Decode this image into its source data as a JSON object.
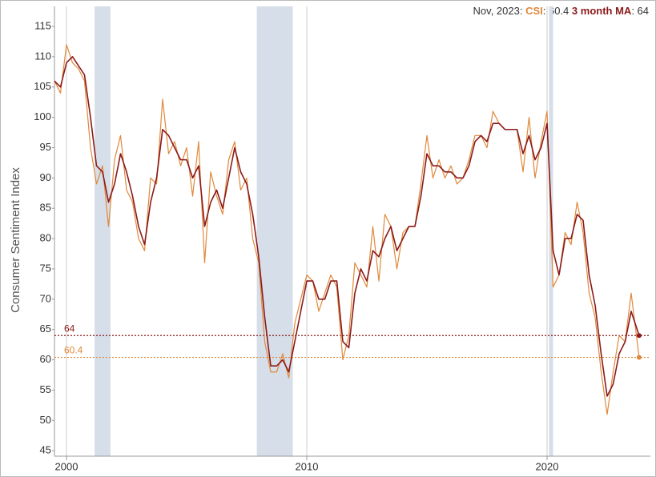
{
  "chart_data": {
    "type": "line",
    "ylabel": "Consumer Sentiment Index",
    "header_date": "Nov, 2023:",
    "xlim": [
      1999.5,
      2024.3
    ],
    "xticks": [
      2000,
      2010,
      2020
    ],
    "ylim": [
      44.1,
      118.3
    ],
    "yticks": [
      45,
      50,
      55,
      60,
      65,
      70,
      75,
      80,
      85,
      90,
      95,
      100,
      105,
      110,
      115
    ],
    "grid": true,
    "recessions": [
      [
        2001.17,
        2001.83
      ],
      [
        2007.92,
        2009.42
      ],
      [
        2020.08,
        2020.25
      ]
    ],
    "recession_color": "#d6dee9",
    "reference_lines": [
      {
        "value": 64,
        "color": "#8b1a1a"
      },
      {
        "value": 60.4,
        "color": "#e0883a"
      }
    ],
    "x": [
      1999.5,
      1999.75,
      2000,
      2000.25,
      2000.5,
      2000.75,
      2001,
      2001.25,
      2001.5,
      2001.75,
      2002,
      2002.25,
      2002.5,
      2002.75,
      2003,
      2003.25,
      2003.5,
      2003.75,
      2004,
      2004.25,
      2004.5,
      2004.75,
      2005,
      2005.25,
      2005.5,
      2005.75,
      2006,
      2006.25,
      2006.5,
      2006.75,
      2007,
      2007.25,
      2007.5,
      2007.75,
      2008,
      2008.25,
      2008.5,
      2008.75,
      2009,
      2009.25,
      2009.5,
      2009.75,
      2010,
      2010.25,
      2010.5,
      2010.75,
      2011,
      2011.25,
      2011.5,
      2011.75,
      2012,
      2012.25,
      2012.5,
      2012.75,
      2013,
      2013.25,
      2013.5,
      2013.75,
      2014,
      2014.25,
      2014.5,
      2014.75,
      2015,
      2015.25,
      2015.5,
      2015.75,
      2016,
      2016.25,
      2016.5,
      2016.75,
      2017,
      2017.25,
      2017.5,
      2017.75,
      2018,
      2018.25,
      2018.5,
      2018.75,
      2019,
      2019.25,
      2019.5,
      2019.75,
      2020,
      2020.25,
      2020.5,
      2020.75,
      2021,
      2021.25,
      2021.5,
      2021.75,
      2022,
      2022.25,
      2022.5,
      2022.75,
      2023,
      2023.25,
      2023.5,
      2023.75,
      2023.83
    ],
    "series": [
      {
        "name": "CSI",
        "color": "#e0883a",
        "width": 1.2,
        "latest_label": ": 60.4",
        "values": [
          106,
          104,
          112,
          109,
          108,
          106,
          95,
          89,
          92,
          82,
          93,
          97,
          88,
          86,
          80,
          78,
          90,
          89,
          103,
          94,
          96,
          92,
          95,
          87,
          96,
          76,
          91,
          87,
          84,
          93,
          96,
          88,
          90,
          80,
          76,
          63,
          58,
          58,
          61,
          57,
          66,
          70,
          74,
          73,
          68,
          71,
          74,
          72,
          60,
          64,
          76,
          74,
          72,
          82,
          73,
          84,
          82,
          75,
          81,
          82,
          82,
          89,
          97,
          90,
          93,
          90,
          92,
          89,
          90,
          93,
          97,
          97,
          95,
          101,
          99,
          98,
          98,
          98,
          91,
          100,
          90,
          96,
          101,
          72,
          74,
          81,
          79,
          86,
          81,
          71,
          67,
          58,
          51,
          58,
          64,
          63,
          71,
          63,
          60.4
        ]
      },
      {
        "name": "3 month MA",
        "color": "#8b1a1a",
        "width": 1.6,
        "latest_label": ": 64",
        "values": [
          106,
          105,
          109,
          110,
          108.5,
          107,
          100,
          92,
          91,
          86,
          89,
          94,
          91,
          87,
          82,
          79,
          86,
          90,
          98,
          97,
          95,
          93,
          93,
          90,
          92,
          82,
          86,
          88,
          85,
          90,
          95,
          91,
          89,
          84,
          77,
          67,
          59,
          59,
          60,
          58,
          63,
          68,
          73,
          73,
          70,
          70,
          73,
          73,
          63,
          62,
          71,
          75,
          73,
          78,
          77,
          80,
          82,
          78,
          80,
          82,
          82,
          87,
          94,
          92,
          92,
          91,
          91,
          90,
          90,
          92,
          96,
          97,
          96,
          99,
          99,
          98,
          98,
          98,
          94,
          97,
          93,
          95,
          99,
          78,
          74,
          80,
          80,
          84,
          83,
          74,
          69,
          61,
          54,
          56,
          61,
          63,
          68,
          65,
          64
        ]
      }
    ]
  }
}
